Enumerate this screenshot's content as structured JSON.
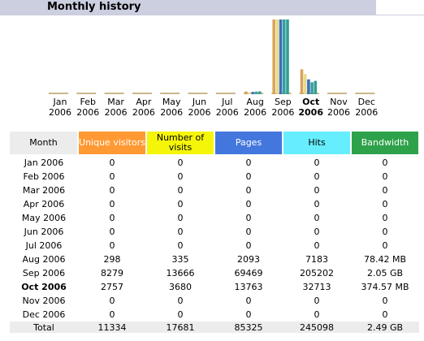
{
  "header": {
    "title": "Monthly history"
  },
  "colors": {
    "unique_visitors": "#ff9933",
    "visits": "#f5f50a",
    "pages": "#4477dd",
    "hits": "#66eeff",
    "bandwidth": "#2ea24a",
    "bar_unique": "#d9a45a",
    "bar_visits": "#e8da8a",
    "bar_pages": "#3b6fb8",
    "bar_hits": "#3a9ea0",
    "bar_bandwidth": "#30a090"
  },
  "chart_data": {
    "type": "bar",
    "categories": [
      "Jan",
      "Feb",
      "Mar",
      "Apr",
      "May",
      "Jun",
      "Jul",
      "Aug",
      "Sep",
      "Oct",
      "Nov",
      "Dec"
    ],
    "year_labels": [
      "2006",
      "2006",
      "2006",
      "2006",
      "2006",
      "2006",
      "2006",
      "2006",
      "2006",
      "2006",
      "2006",
      "2006"
    ],
    "current_month_index": 9,
    "series": [
      {
        "name": "Unique visitors",
        "values": [
          0,
          0,
          0,
          0,
          0,
          0,
          0,
          298,
          8279,
          2757,
          0,
          0
        ]
      },
      {
        "name": "Number of visits",
        "values": [
          0,
          0,
          0,
          0,
          0,
          0,
          0,
          335,
          13666,
          3680,
          0,
          0
        ]
      },
      {
        "name": "Pages",
        "values": [
          0,
          0,
          0,
          0,
          0,
          0,
          0,
          2093,
          69469,
          13763,
          0,
          0
        ]
      },
      {
        "name": "Hits",
        "values": [
          0,
          0,
          0,
          0,
          0,
          0,
          0,
          7183,
          205202,
          32713,
          0,
          0
        ]
      },
      {
        "name": "Bandwidth",
        "values": [
          0,
          0,
          0,
          0,
          0,
          0,
          0,
          78.42,
          2099.2,
          374.57,
          0,
          0
        ]
      }
    ]
  },
  "table": {
    "headers": {
      "month": "Month",
      "unique": "Unique visitors",
      "visits": "Number of visits",
      "pages": "Pages",
      "hits": "Hits",
      "bandwidth": "Bandwidth"
    },
    "rows": [
      {
        "month": "Jan 2006",
        "unique": "0",
        "visits": "0",
        "pages": "0",
        "hits": "0",
        "bandwidth": "0"
      },
      {
        "month": "Feb 2006",
        "unique": "0",
        "visits": "0",
        "pages": "0",
        "hits": "0",
        "bandwidth": "0"
      },
      {
        "month": "Mar 2006",
        "unique": "0",
        "visits": "0",
        "pages": "0",
        "hits": "0",
        "bandwidth": "0"
      },
      {
        "month": "Apr 2006",
        "unique": "0",
        "visits": "0",
        "pages": "0",
        "hits": "0",
        "bandwidth": "0"
      },
      {
        "month": "May 2006",
        "unique": "0",
        "visits": "0",
        "pages": "0",
        "hits": "0",
        "bandwidth": "0"
      },
      {
        "month": "Jun 2006",
        "unique": "0",
        "visits": "0",
        "pages": "0",
        "hits": "0",
        "bandwidth": "0"
      },
      {
        "month": "Jul 2006",
        "unique": "0",
        "visits": "0",
        "pages": "0",
        "hits": "0",
        "bandwidth": "0"
      },
      {
        "month": "Aug 2006",
        "unique": "298",
        "visits": "335",
        "pages": "2093",
        "hits": "7183",
        "bandwidth": "78.42 MB"
      },
      {
        "month": "Sep 2006",
        "unique": "8279",
        "visits": "13666",
        "pages": "69469",
        "hits": "205202",
        "bandwidth": "2.05 GB"
      },
      {
        "month": "Oct 2006",
        "unique": "2757",
        "visits": "3680",
        "pages": "13763",
        "hits": "32713",
        "bandwidth": "374.57 MB"
      },
      {
        "month": "Nov 2006",
        "unique": "0",
        "visits": "0",
        "pages": "0",
        "hits": "0",
        "bandwidth": "0"
      },
      {
        "month": "Dec 2006",
        "unique": "0",
        "visits": "0",
        "pages": "0",
        "hits": "0",
        "bandwidth": "0"
      }
    ],
    "total": {
      "month": "Total",
      "unique": "11334",
      "visits": "17681",
      "pages": "85325",
      "hits": "245098",
      "bandwidth": "2.49 GB"
    }
  }
}
